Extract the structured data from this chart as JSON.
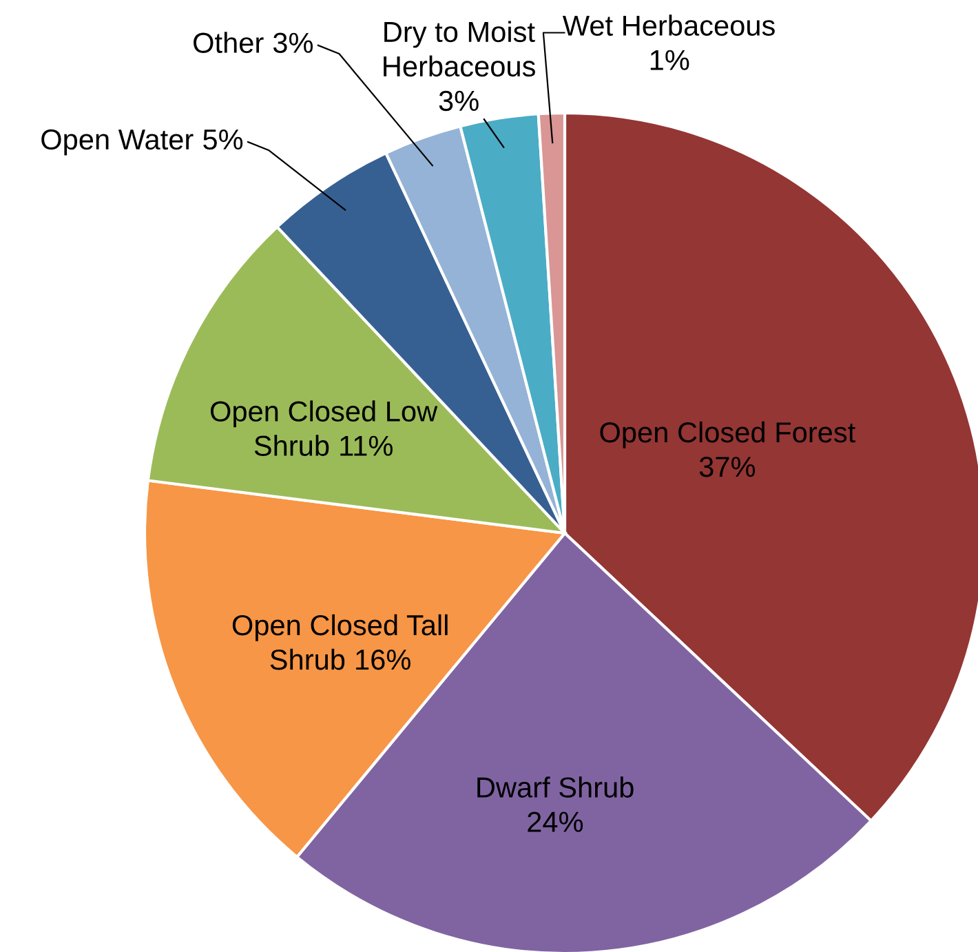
{
  "chart_data": {
    "type": "pie",
    "categories": [
      "Open Closed Forest",
      "Dwarf Shrub",
      "Open Closed Tall Shrub",
      "Open Closed Low Shrub",
      "Open Water",
      "Other",
      "Dry to Moist Herbaceous",
      "Wet Herbaceous"
    ],
    "values": [
      37,
      24,
      16,
      11,
      5,
      3,
      3,
      1
    ],
    "colors": [
      "#943634",
      "#8064a2",
      "#f79646",
      "#9bbb59",
      "#376092",
      "#95b3d7",
      "#4bacc6",
      "#d99694"
    ],
    "value_labels": [
      "37%",
      "24%",
      "16%",
      "11%",
      "5%",
      "3%",
      "3%",
      "1%"
    ]
  }
}
